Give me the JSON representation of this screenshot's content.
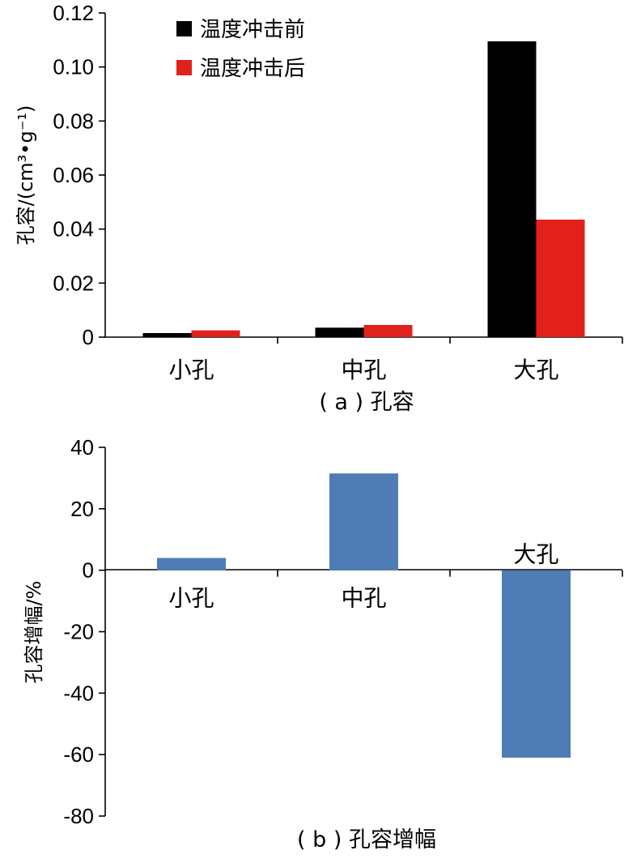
{
  "chart_data": [
    {
      "type": "bar",
      "caption": "( a ) 孔容",
      "ylabel": "孔容/(cm³•g⁻¹)",
      "ylim": [
        0,
        0.12
      ],
      "yticks": [
        "0",
        "0.02",
        "0.04",
        "0.06",
        "0.08",
        "0.10",
        "0.12"
      ],
      "categories": [
        "小孔",
        "中孔",
        "大孔"
      ],
      "legend_position": "top-left",
      "series": [
        {
          "name": "温度冲击前",
          "color": "#000000",
          "values": [
            0.0015,
            0.0035,
            0.1095
          ]
        },
        {
          "name": "温度冲击后",
          "color": "#e3211c",
          "values": [
            0.0025,
            0.0045,
            0.0435
          ]
        }
      ]
    },
    {
      "type": "bar",
      "caption": "( b ) 孔容增幅",
      "ylabel": "孔容增幅/%",
      "ylim": [
        -80,
        40
      ],
      "yticks": [
        "40",
        "20",
        "0",
        "-20",
        "-40",
        "-60",
        "-80"
      ],
      "categories": [
        "小孔",
        "中孔",
        "大孔"
      ],
      "series": [
        {
          "color": "#4f7cb5",
          "values": [
            4,
            31.5,
            -61
          ]
        }
      ]
    }
  ]
}
